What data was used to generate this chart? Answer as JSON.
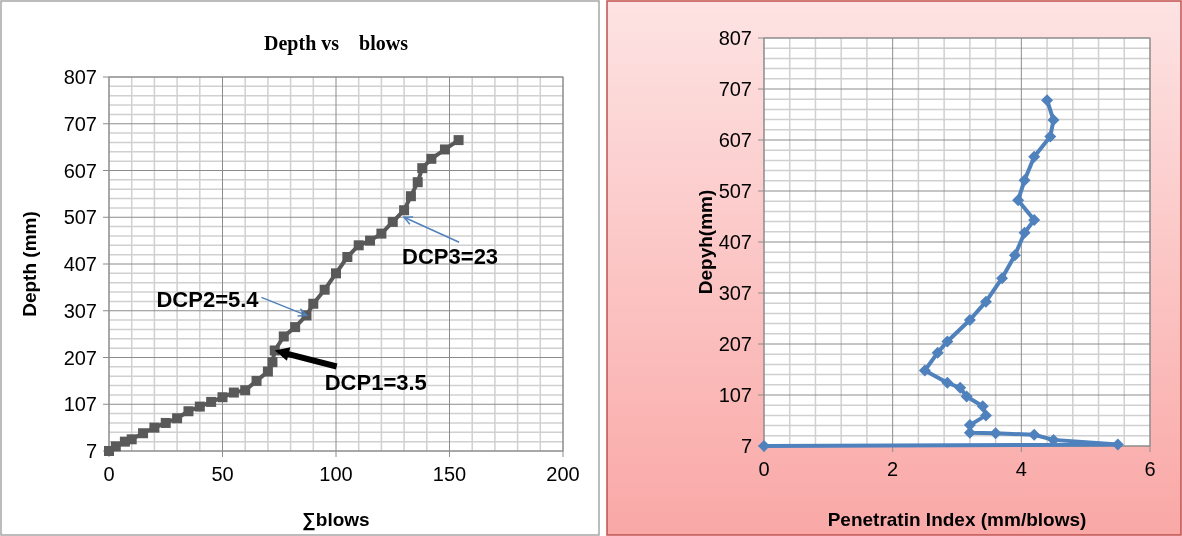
{
  "chart_data": [
    {
      "type": "line",
      "title": "Depth vs    blows",
      "xlabel": "∑blows",
      "ylabel": "Depth (mm)",
      "xlim": [
        0,
        200
      ],
      "xticks": [
        0,
        50,
        100,
        150,
        200
      ],
      "ylim": [
        7,
        807
      ],
      "yticks": [
        7,
        107,
        207,
        307,
        407,
        507,
        607,
        707,
        807
      ],
      "grid": true,
      "marker": "square",
      "line_style": "solid",
      "annotations": [
        {
          "text": "DCP1=3.5",
          "x": 73,
          "y": 222
        },
        {
          "text": "DCP2=5.4",
          "x": 87,
          "y": 297
        },
        {
          "text": "DCP3=23",
          "x": 130,
          "y": 507
        }
      ],
      "series": [
        {
          "color": "#595959",
          "x": [
            0,
            3,
            7,
            10,
            15,
            20,
            25,
            30,
            35,
            40,
            45,
            50,
            55,
            60,
            65,
            70,
            72,
            73,
            77,
            82,
            87,
            90,
            95,
            100,
            105,
            110,
            115,
            120,
            125,
            130,
            133,
            136,
            138,
            142,
            148,
            154
          ],
          "values": [
            7,
            17,
            27,
            32,
            45,
            57,
            67,
            77,
            92,
            102,
            112,
            122,
            132,
            137,
            157,
            177,
            197,
            222,
            252,
            272,
            297,
            322,
            352,
            387,
            422,
            447,
            457,
            472,
            497,
            522,
            552,
            582,
            612,
            632,
            652,
            672
          ]
        }
      ]
    },
    {
      "type": "line",
      "xlabel": "Penetratin Index (mm/blows)",
      "ylabel": "Depyh(mm)",
      "xlim": [
        0,
        6
      ],
      "xticks": [
        0,
        2,
        4,
        6
      ],
      "ylim": [
        7,
        807
      ],
      "yticks": [
        7,
        107,
        207,
        307,
        407,
        507,
        607,
        707,
        807
      ],
      "grid": true,
      "marker": "diamond",
      "line_style": "solid",
      "series": [
        {
          "color": "#4f81bd",
          "x": [
            0,
            5.5,
            4.5,
            4.2,
            3.6,
            3.2,
            3.2,
            3.45,
            3.4,
            3.15,
            3.05,
            2.85,
            2.5,
            2.7,
            2.85,
            3.2,
            3.45,
            3.7,
            3.9,
            4.05,
            4.2,
            3.95,
            4.05,
            4.2,
            4.45,
            4.5,
            4.4
          ],
          "values": [
            7,
            10,
            19,
            29,
            32,
            33,
            48,
            67,
            85,
            104,
            121,
            131,
            155,
            190,
            212,
            254,
            290,
            336,
            381,
            425,
            450,
            489,
            528,
            574,
            614,
            646,
            685
          ]
        }
      ]
    }
  ]
}
